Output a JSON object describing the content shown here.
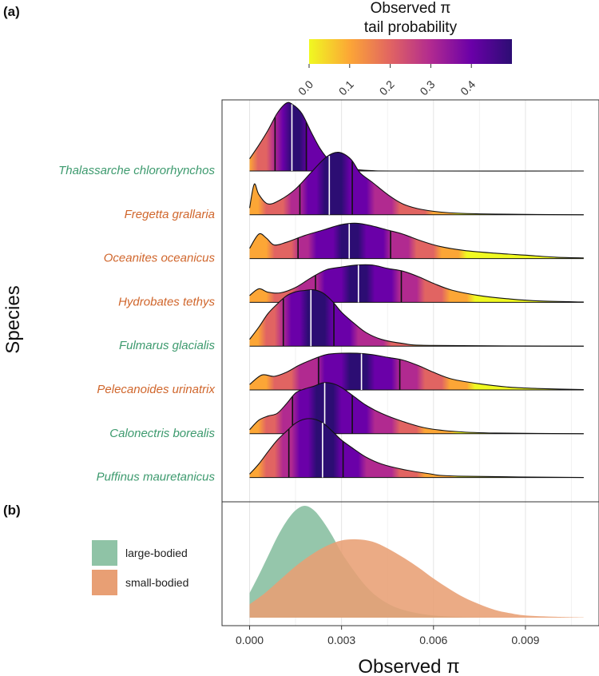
{
  "colors": {
    "large_bodied": "#3d9a6e",
    "small_bodied": "#d0662c",
    "fill_large": "#8fc3a6",
    "fill_small": "#e89f74",
    "gradient_low": "#f0f921",
    "gradient_high": "#2c0d73"
  },
  "chart_data": [
    {
      "panel": "(a)",
      "type": "ridgeline",
      "xlabel": "",
      "ylabel": "Species",
      "xlim": [
        -0.0009,
        0.0114
      ],
      "colorbar": {
        "title_line1": "Observed π",
        "title_line2": "tail probability",
        "tick_labels": [
          "0.0",
          "0.1",
          "0.2",
          "0.3",
          "0.4"
        ],
        "range": [
          0,
          0.5
        ]
      },
      "quantile_lines": [
        "lower",
        "median",
        "upper"
      ],
      "series": [
        {
          "name": "Thalassarche chlororhynchos",
          "group": "large-bodied",
          "quantiles": [
            0.00083,
            0.00138,
            0.00185
          ],
          "density": [
            [
              0,
              0.18
            ],
            [
              0.0003,
              0.38
            ],
            [
              0.0006,
              0.6
            ],
            [
              0.0009,
              0.85
            ],
            [
              0.0012,
              1.0
            ],
            [
              0.0014,
              0.98
            ],
            [
              0.0017,
              0.85
            ],
            [
              0.002,
              0.58
            ],
            [
              0.0023,
              0.33
            ],
            [
              0.0026,
              0.16
            ],
            [
              0.003,
              0.06
            ],
            [
              0.0035,
              0.02
            ],
            [
              0.004,
              0.005
            ],
            [
              0.005,
              0.0
            ],
            [
              0.0109,
              0.0
            ]
          ]
        },
        {
          "name": "Fregetta grallaria",
          "group": "small-bodied",
          "quantiles": [
            0.00164,
            0.0026,
            0.00335
          ],
          "density": [
            [
              0,
              0.1
            ],
            [
              0.00015,
              0.45
            ],
            [
              0.0003,
              0.3
            ],
            [
              0.0006,
              0.16
            ],
            [
              0.001,
              0.22
            ],
            [
              0.0015,
              0.38
            ],
            [
              0.002,
              0.62
            ],
            [
              0.0025,
              0.85
            ],
            [
              0.0029,
              0.92
            ],
            [
              0.0033,
              0.82
            ],
            [
              0.0036,
              0.62
            ],
            [
              0.004,
              0.48
            ],
            [
              0.0045,
              0.3
            ],
            [
              0.005,
              0.16
            ],
            [
              0.0056,
              0.08
            ],
            [
              0.0065,
              0.03
            ],
            [
              0.008,
              0.01
            ],
            [
              0.0109,
              0.0
            ]
          ]
        },
        {
          "name": "Oceanites oceanicus",
          "group": "small-bodied",
          "quantiles": [
            0.00158,
            0.00325,
            0.0046
          ],
          "density": [
            [
              0,
              0.15
            ],
            [
              0.0003,
              0.36
            ],
            [
              0.00055,
              0.3
            ],
            [
              0.0008,
              0.2
            ],
            [
              0.0012,
              0.24
            ],
            [
              0.0018,
              0.34
            ],
            [
              0.0024,
              0.42
            ],
            [
              0.003,
              0.5
            ],
            [
              0.0035,
              0.52
            ],
            [
              0.004,
              0.48
            ],
            [
              0.0045,
              0.42
            ],
            [
              0.005,
              0.36
            ],
            [
              0.0056,
              0.26
            ],
            [
              0.0062,
              0.18
            ],
            [
              0.007,
              0.12
            ],
            [
              0.008,
              0.08
            ],
            [
              0.009,
              0.05
            ],
            [
              0.01,
              0.02
            ],
            [
              0.0109,
              0.01
            ]
          ]
        },
        {
          "name": "Hydrobates tethys",
          "group": "small-bodied",
          "quantiles": [
            0.00215,
            0.00355,
            0.00495
          ],
          "density": [
            [
              0,
              0.1
            ],
            [
              0.0003,
              0.2
            ],
            [
              0.0006,
              0.15
            ],
            [
              0.001,
              0.14
            ],
            [
              0.0015,
              0.22
            ],
            [
              0.002,
              0.36
            ],
            [
              0.0025,
              0.48
            ],
            [
              0.003,
              0.52
            ],
            [
              0.0035,
              0.55
            ],
            [
              0.004,
              0.55
            ],
            [
              0.0045,
              0.5
            ],
            [
              0.005,
              0.46
            ],
            [
              0.0055,
              0.38
            ],
            [
              0.006,
              0.28
            ],
            [
              0.0066,
              0.18
            ],
            [
              0.0075,
              0.1
            ],
            [
              0.0085,
              0.05
            ],
            [
              0.0095,
              0.02
            ],
            [
              0.0109,
              0.005
            ]
          ]
        },
        {
          "name": "Fulmarus glacialis",
          "group": "large-bodied",
          "quantiles": [
            0.0011,
            0.002,
            0.00275
          ],
          "density": [
            [
              0,
              0.1
            ],
            [
              0.0003,
              0.28
            ],
            [
              0.0006,
              0.48
            ],
            [
              0.0009,
              0.62
            ],
            [
              0.0012,
              0.74
            ],
            [
              0.0015,
              0.8
            ],
            [
              0.0018,
              0.82
            ],
            [
              0.0021,
              0.83
            ],
            [
              0.0024,
              0.78
            ],
            [
              0.0027,
              0.66
            ],
            [
              0.003,
              0.5
            ],
            [
              0.0034,
              0.34
            ],
            [
              0.0038,
              0.2
            ],
            [
              0.0043,
              0.1
            ],
            [
              0.005,
              0.04
            ],
            [
              0.006,
              0.01
            ],
            [
              0.0109,
              0.0
            ]
          ]
        },
        {
          "name": "Pelecanoides urinatrix",
          "group": "small-bodied",
          "quantiles": [
            0.00225,
            0.00365,
            0.0049
          ],
          "density": [
            [
              0,
              0.08
            ],
            [
              0.0004,
              0.22
            ],
            [
              0.0008,
              0.2
            ],
            [
              0.0012,
              0.26
            ],
            [
              0.0016,
              0.36
            ],
            [
              0.002,
              0.44
            ],
            [
              0.0025,
              0.52
            ],
            [
              0.003,
              0.54
            ],
            [
              0.0035,
              0.54
            ],
            [
              0.004,
              0.52
            ],
            [
              0.0045,
              0.48
            ],
            [
              0.005,
              0.44
            ],
            [
              0.0055,
              0.36
            ],
            [
              0.006,
              0.26
            ],
            [
              0.0066,
              0.16
            ],
            [
              0.0075,
              0.09
            ],
            [
              0.0085,
              0.04
            ],
            [
              0.0095,
              0.02
            ],
            [
              0.0109,
              0.005
            ]
          ]
        },
        {
          "name": "Calonectris borealis",
          "group": "large-bodied",
          "quantiles": [
            0.0014,
            0.00245,
            0.00335
          ],
          "density": [
            [
              0,
              0.06
            ],
            [
              0.0003,
              0.2
            ],
            [
              0.0006,
              0.26
            ],
            [
              0.0009,
              0.3
            ],
            [
              0.0012,
              0.44
            ],
            [
              0.0015,
              0.6
            ],
            [
              0.0018,
              0.66
            ],
            [
              0.0021,
              0.7
            ],
            [
              0.0024,
              0.75
            ],
            [
              0.0027,
              0.74
            ],
            [
              0.003,
              0.68
            ],
            [
              0.0034,
              0.55
            ],
            [
              0.0038,
              0.42
            ],
            [
              0.0043,
              0.3
            ],
            [
              0.005,
              0.18
            ],
            [
              0.0058,
              0.08
            ],
            [
              0.0068,
              0.03
            ],
            [
              0.008,
              0.01
            ],
            [
              0.0109,
              0.0
            ]
          ]
        },
        {
          "name": "Puffinus mauretanicus",
          "group": "large-bodied",
          "quantiles": [
            0.00128,
            0.00238,
            0.00305
          ],
          "density": [
            [
              0,
              0.05
            ],
            [
              0.0003,
              0.2
            ],
            [
              0.0006,
              0.38
            ],
            [
              0.0009,
              0.55
            ],
            [
              0.0012,
              0.68
            ],
            [
              0.0015,
              0.8
            ],
            [
              0.0018,
              0.86
            ],
            [
              0.0021,
              0.86
            ],
            [
              0.0024,
              0.8
            ],
            [
              0.0027,
              0.68
            ],
            [
              0.003,
              0.55
            ],
            [
              0.0034,
              0.42
            ],
            [
              0.0038,
              0.3
            ],
            [
              0.0043,
              0.2
            ],
            [
              0.005,
              0.12
            ],
            [
              0.0058,
              0.06
            ],
            [
              0.0068,
              0.02
            ],
            [
              0.0109,
              0.0
            ]
          ]
        }
      ]
    },
    {
      "panel": "(b)",
      "type": "area",
      "xlabel": "Observed π",
      "xlim": [
        -0.0009,
        0.0114
      ],
      "x_ticks": [
        0,
        0.003,
        0.006,
        0.009
      ],
      "x_tick_labels": [
        "0.000",
        "0.003",
        "0.006",
        "0.009"
      ],
      "legend": {
        "position": "left"
      },
      "series": [
        {
          "name": "large-bodied",
          "density": [
            [
              0,
              0.22
            ],
            [
              0.0003,
              0.38
            ],
            [
              0.0006,
              0.55
            ],
            [
              0.0009,
              0.72
            ],
            [
              0.0012,
              0.86
            ],
            [
              0.0015,
              0.96
            ],
            [
              0.0018,
              1.0
            ],
            [
              0.0021,
              0.96
            ],
            [
              0.0024,
              0.86
            ],
            [
              0.0027,
              0.73
            ],
            [
              0.003,
              0.58
            ],
            [
              0.0034,
              0.42
            ],
            [
              0.0038,
              0.28
            ],
            [
              0.0042,
              0.18
            ],
            [
              0.0047,
              0.1
            ],
            [
              0.0053,
              0.05
            ],
            [
              0.006,
              0.02
            ],
            [
              0.007,
              0.005
            ],
            [
              0.008,
              0.0
            ]
          ]
        },
        {
          "name": "small-bodied",
          "density": [
            [
              0,
              0.12
            ],
            [
              0.0005,
              0.22
            ],
            [
              0.001,
              0.34
            ],
            [
              0.0015,
              0.46
            ],
            [
              0.002,
              0.56
            ],
            [
              0.0025,
              0.64
            ],
            [
              0.003,
              0.69
            ],
            [
              0.0035,
              0.7
            ],
            [
              0.004,
              0.68
            ],
            [
              0.0045,
              0.62
            ],
            [
              0.005,
              0.54
            ],
            [
              0.0055,
              0.45
            ],
            [
              0.006,
              0.35
            ],
            [
              0.0065,
              0.26
            ],
            [
              0.007,
              0.18
            ],
            [
              0.0075,
              0.12
            ],
            [
              0.008,
              0.07
            ],
            [
              0.0085,
              0.04
            ],
            [
              0.009,
              0.02
            ],
            [
              0.01,
              0.008
            ],
            [
              0.0109,
              0.002
            ]
          ]
        }
      ]
    }
  ]
}
